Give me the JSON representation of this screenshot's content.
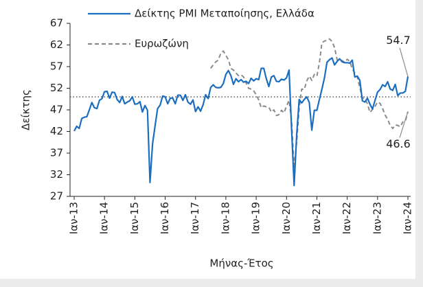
{
  "chart_data": {
    "type": "line",
    "y_label": "Δείκτης",
    "x_label": "Μήνας-Έτος",
    "categories": [
      "Ιαν-13",
      null,
      null,
      null,
      null,
      null,
      null,
      null,
      null,
      null,
      null,
      null,
      "Ιαν-14",
      null,
      null,
      null,
      null,
      null,
      null,
      null,
      null,
      null,
      null,
      null,
      "Ιαν-15",
      null,
      null,
      null,
      null,
      null,
      null,
      null,
      null,
      null,
      null,
      null,
      "Ιαν-16",
      null,
      null,
      null,
      null,
      null,
      null,
      null,
      null,
      null,
      null,
      null,
      "Ιαν-17",
      null,
      null,
      null,
      null,
      null,
      null,
      null,
      null,
      null,
      null,
      null,
      "Ιαν-18",
      null,
      null,
      null,
      null,
      null,
      null,
      null,
      null,
      null,
      null,
      null,
      "Ιαν-19",
      null,
      null,
      null,
      null,
      null,
      null,
      null,
      null,
      null,
      null,
      null,
      "Ιαν-20",
      null,
      null,
      null,
      null,
      null,
      null,
      null,
      null,
      null,
      null,
      null,
      "Ιαν-21",
      null,
      null,
      null,
      null,
      null,
      null,
      null,
      null,
      null,
      null,
      null,
      "Ιαν-22",
      null,
      null,
      null,
      null,
      null,
      null,
      null,
      null,
      null,
      null,
      null,
      "Ιαν-23",
      null,
      null,
      null,
      null,
      null,
      null,
      null,
      null,
      null,
      null,
      null,
      "Ιαν-24"
    ],
    "series": [
      {
        "name": "Δείκτης PMI Μεταποίησης, Ελλάδα",
        "color": "#1a6dbf",
        "dashed": false,
        "values": [
          42.1,
          43.2,
          42.7,
          45.0,
          45.3,
          45.4,
          47.0,
          48.7,
          47.5,
          47.3,
          49.2,
          49.6,
          51.2,
          51.3,
          49.7,
          51.1,
          51.0,
          49.4,
          48.7,
          50.1,
          48.4,
          48.8,
          49.1,
          50.0,
          48.3,
          48.4,
          48.9,
          46.5,
          48.0,
          46.9,
          30.2,
          39.1,
          43.3,
          47.3,
          48.1,
          50.2,
          50.0,
          48.4,
          49.7,
          49.7,
          48.4,
          50.4,
          50.4,
          49.2,
          50.5,
          48.8,
          48.3,
          49.3,
          46.6,
          47.7,
          46.7,
          48.2,
          50.5,
          49.6,
          52.2,
          52.8,
          52.2,
          52.1,
          52.2,
          53.1,
          55.2,
          56.1,
          54.9,
          52.9,
          54.2,
          53.5,
          54.0,
          53.4,
          53.6,
          53.1,
          54.3,
          53.7,
          54.2,
          54.0,
          56.6,
          56.6,
          54.2,
          52.4,
          54.6,
          54.9,
          53.6,
          53.5,
          54.1,
          53.9,
          54.4,
          56.2,
          42.5,
          29.5,
          41.1,
          49.4,
          48.6,
          49.4,
          50.0,
          48.7,
          42.3,
          46.9,
          46.9,
          49.4,
          51.8,
          54.4,
          58.0,
          58.6,
          59.0,
          57.4,
          58.2,
          58.8,
          58.1,
          57.9,
          57.9,
          57.8,
          58.5,
          54.6,
          54.8,
          53.8,
          49.1,
          48.8,
          49.7,
          48.3,
          47.2,
          49.2,
          51.1,
          51.7,
          52.8,
          52.4,
          53.5,
          51.8,
          51.5,
          52.9,
          50.3,
          50.9,
          50.9,
          51.3,
          54.7
        ]
      },
      {
        "name": "Ευρωζώνη",
        "color": "#8a8a8a",
        "dashed": true,
        "values": [
          null,
          null,
          null,
          null,
          null,
          null,
          null,
          null,
          null,
          null,
          null,
          null,
          null,
          null,
          null,
          null,
          null,
          null,
          null,
          null,
          null,
          null,
          null,
          null,
          null,
          null,
          null,
          null,
          null,
          null,
          null,
          null,
          null,
          null,
          null,
          null,
          null,
          null,
          null,
          null,
          null,
          null,
          null,
          null,
          null,
          null,
          null,
          null,
          null,
          null,
          null,
          null,
          null,
          null,
          56.6,
          57.4,
          58.1,
          58.5,
          60.1,
          60.6,
          59.6,
          58.6,
          56.6,
          56.2,
          55.5,
          54.9,
          55.1,
          54.6,
          53.2,
          52.0,
          51.8,
          51.4,
          50.5,
          49.3,
          47.5,
          47.9,
          47.7,
          47.6,
          46.5,
          47.0,
          45.7,
          45.9,
          46.9,
          46.3,
          47.9,
          49.2,
          44.5,
          33.4,
          39.4,
          47.4,
          51.8,
          51.7,
          53.7,
          54.8,
          53.8,
          55.2,
          54.8,
          57.9,
          62.5,
          62.9,
          63.1,
          63.4,
          62.8,
          61.4,
          58.6,
          58.3,
          58.4,
          58.0,
          58.7,
          58.2,
          56.5,
          55.5,
          54.6,
          52.1,
          49.8,
          49.6,
          48.4,
          46.4,
          47.1,
          47.8,
          48.8,
          48.5,
          47.3,
          45.8,
          44.8,
          43.4,
          42.7,
          43.5,
          43.4,
          43.1,
          44.2,
          44.4,
          46.6
        ]
      }
    ],
    "reference_line": 50,
    "ylim": [
      27,
      67
    ],
    "yticks": [
      27,
      32,
      37,
      42,
      47,
      52,
      57,
      62,
      67
    ]
  }
}
